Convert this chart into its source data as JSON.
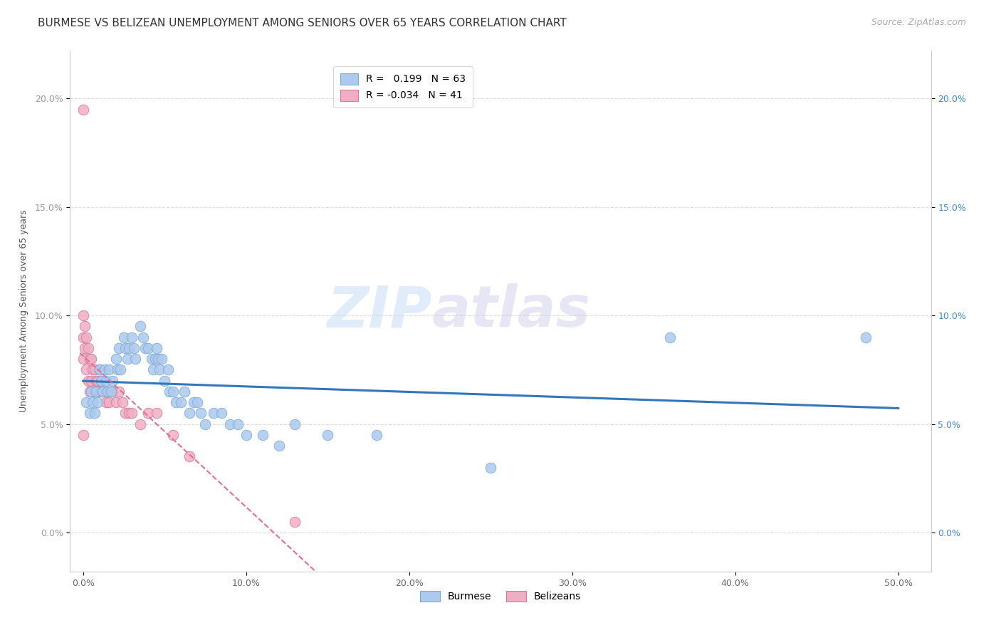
{
  "title": "BURMESE VS BELIZEAN UNEMPLOYMENT AMONG SENIORS OVER 65 YEARS CORRELATION CHART",
  "source": "Source: ZipAtlas.com",
  "ylabel": "Unemployment Among Seniors over 65 years",
  "x_ticks": [
    0.0,
    0.1,
    0.2,
    0.3,
    0.4,
    0.5
  ],
  "x_tick_labels": [
    "0.0%",
    "10.0%",
    "20.0%",
    "30.0%",
    "40.0%",
    "50.0%"
  ],
  "y_ticks": [
    0.0,
    0.05,
    0.1,
    0.15,
    0.2
  ],
  "y_tick_labels": [
    "0.0%",
    "5.0%",
    "10.0%",
    "15.0%",
    "20.0%"
  ],
  "xlim": [
    -0.008,
    0.52
  ],
  "ylim": [
    -0.018,
    0.222
  ],
  "burmese_color": "#adc9ee",
  "belizean_color": "#f0aec4",
  "burmese_edge": "#7aaad4",
  "belizean_edge": "#d47898",
  "trend_blue": "#3377bb",
  "trend_pink": "#e07090",
  "legend_R_blue": "0.199",
  "legend_N_blue": "63",
  "legend_R_pink": "-0.034",
  "legend_N_pink": "41",
  "watermark_zip": "ZIP",
  "watermark_atlas": "atlas",
  "burmese_x": [
    0.002,
    0.004,
    0.005,
    0.006,
    0.007,
    0.008,
    0.009,
    0.01,
    0.011,
    0.012,
    0.013,
    0.014,
    0.015,
    0.016,
    0.017,
    0.018,
    0.02,
    0.021,
    0.022,
    0.023,
    0.025,
    0.026,
    0.027,
    0.028,
    0.03,
    0.031,
    0.032,
    0.035,
    0.037,
    0.038,
    0.04,
    0.042,
    0.043,
    0.044,
    0.045,
    0.046,
    0.047,
    0.048,
    0.05,
    0.052,
    0.053,
    0.055,
    0.057,
    0.06,
    0.062,
    0.065,
    0.068,
    0.07,
    0.072,
    0.075,
    0.08,
    0.085,
    0.09,
    0.095,
    0.1,
    0.11,
    0.12,
    0.13,
    0.15,
    0.18,
    0.25,
    0.36,
    0.48
  ],
  "burmese_y": [
    0.06,
    0.055,
    0.065,
    0.06,
    0.055,
    0.065,
    0.06,
    0.075,
    0.07,
    0.065,
    0.075,
    0.07,
    0.065,
    0.075,
    0.065,
    0.07,
    0.08,
    0.075,
    0.085,
    0.075,
    0.09,
    0.085,
    0.08,
    0.085,
    0.09,
    0.085,
    0.08,
    0.095,
    0.09,
    0.085,
    0.085,
    0.08,
    0.075,
    0.08,
    0.085,
    0.08,
    0.075,
    0.08,
    0.07,
    0.075,
    0.065,
    0.065,
    0.06,
    0.06,
    0.065,
    0.055,
    0.06,
    0.06,
    0.055,
    0.05,
    0.055,
    0.055,
    0.05,
    0.05,
    0.045,
    0.045,
    0.04,
    0.05,
    0.045,
    0.045,
    0.03,
    0.09,
    0.09
  ],
  "belizean_x": [
    0.0,
    0.0,
    0.0,
    0.0,
    0.0,
    0.001,
    0.001,
    0.002,
    0.002,
    0.003,
    0.003,
    0.004,
    0.004,
    0.005,
    0.005,
    0.006,
    0.007,
    0.007,
    0.008,
    0.009,
    0.01,
    0.01,
    0.011,
    0.012,
    0.013,
    0.014,
    0.015,
    0.016,
    0.018,
    0.02,
    0.022,
    0.024,
    0.026,
    0.028,
    0.03,
    0.035,
    0.04,
    0.045,
    0.055,
    0.065,
    0.13
  ],
  "belizean_y": [
    0.195,
    0.1,
    0.09,
    0.08,
    0.045,
    0.095,
    0.085,
    0.09,
    0.075,
    0.085,
    0.07,
    0.08,
    0.065,
    0.08,
    0.07,
    0.075,
    0.075,
    0.065,
    0.07,
    0.07,
    0.075,
    0.065,
    0.07,
    0.065,
    0.065,
    0.06,
    0.065,
    0.06,
    0.065,
    0.06,
    0.065,
    0.06,
    0.055,
    0.055,
    0.055,
    0.05,
    0.055,
    0.055,
    0.045,
    0.035,
    0.005
  ],
  "grid_color": "#dddddd",
  "background_color": "#ffffff",
  "title_fontsize": 11,
  "source_fontsize": 9,
  "axis_label_fontsize": 9,
  "tick_fontsize": 9,
  "legend_fontsize": 10
}
